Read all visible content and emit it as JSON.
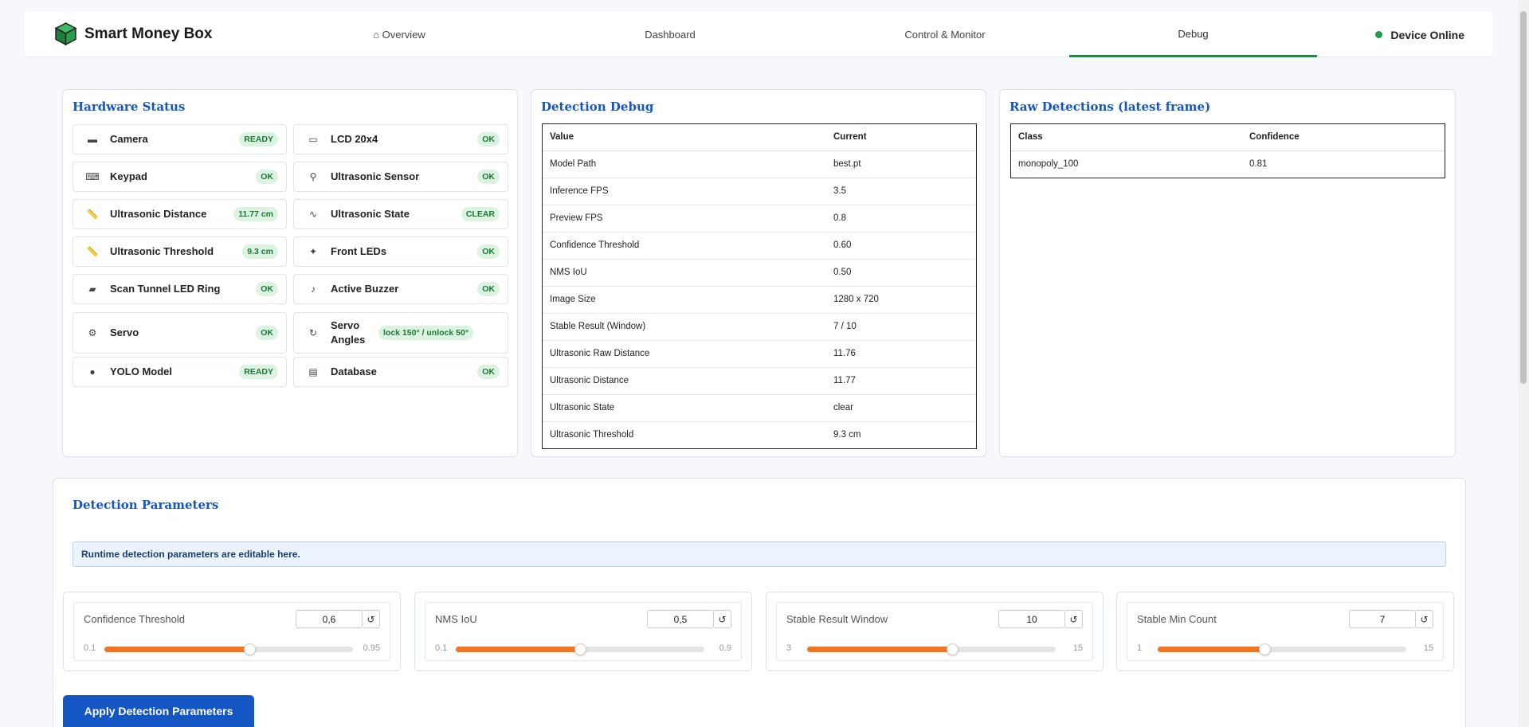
{
  "nav": {
    "brand": "Smart Money Box",
    "links": [
      {
        "label": "⌂ Overview"
      },
      {
        "label": "Dashboard"
      },
      {
        "label": "Control & Monitor"
      },
      {
        "label": "Debug",
        "active": true
      }
    ],
    "status": "Device Online",
    "status_color": "#1e9e4a"
  },
  "hardware": {
    "title": "Hardware Status",
    "items": [
      {
        "icon": "camera-icon",
        "glyph": "▬",
        "label": "Camera",
        "badge": "READY"
      },
      {
        "icon": "lcd-icon",
        "glyph": "▭",
        "label": "LCD 20x4",
        "badge": "OK"
      },
      {
        "icon": "keypad-icon",
        "glyph": "⌨",
        "label": "Keypad",
        "badge": "OK"
      },
      {
        "icon": "satellite-icon",
        "glyph": "⚲",
        "label": "Ultrasonic Sensor",
        "badge": "OK"
      },
      {
        "icon": "ruler-icon",
        "glyph": "📏",
        "label": "Ultrasonic Distance",
        "badge": "11.77 cm"
      },
      {
        "icon": "wave-icon",
        "glyph": "∿",
        "label": "Ultrasonic State",
        "badge": "CLEAR"
      },
      {
        "icon": "ruler-icon",
        "glyph": "📏",
        "label": "Ultrasonic Threshold",
        "badge": "9.3 cm"
      },
      {
        "icon": "sparkle-icon",
        "glyph": "✦",
        "label": "Front LEDs",
        "badge": "OK"
      },
      {
        "icon": "flashlight-icon",
        "glyph": "▰",
        "label": "Scan Tunnel LED Ring",
        "badge": "OK"
      },
      {
        "icon": "music-note-icon",
        "glyph": "♪",
        "label": "Active Buzzer",
        "badge": "OK"
      },
      {
        "icon": "gear-icon",
        "glyph": "⚙",
        "label": "Servo",
        "badge": "OK"
      },
      {
        "icon": "rotate-icon",
        "glyph": "↻",
        "label": "Servo Angles",
        "badge": "lock 150° / unlock 50°"
      },
      {
        "icon": "brain-icon",
        "glyph": "●",
        "label": "YOLO Model",
        "badge": "READY"
      },
      {
        "icon": "database-icon",
        "glyph": "▤",
        "label": "Database",
        "badge": "OK"
      }
    ]
  },
  "detection_debug": {
    "title": "Detection Debug",
    "headers": [
      "Value",
      "Current"
    ],
    "rows": [
      [
        "Model Path",
        "best.pt"
      ],
      [
        "Inference FPS",
        "3.5"
      ],
      [
        "Preview FPS",
        "0.8"
      ],
      [
        "Confidence Threshold",
        "0.60"
      ],
      [
        "NMS IoU",
        "0.50"
      ],
      [
        "Image Size",
        "1280 x 720"
      ],
      [
        "Stable Result (Window)",
        "7 / 10"
      ],
      [
        "Ultrasonic Raw Distance",
        "11.76"
      ],
      [
        "Ultrasonic Distance",
        "11.77"
      ],
      [
        "Ultrasonic State",
        "clear"
      ],
      [
        "Ultrasonic Threshold",
        "9.3 cm"
      ]
    ]
  },
  "raw_detections": {
    "title": "Raw Detections (latest frame)",
    "headers": [
      "Class",
      "Confidence"
    ],
    "rows": [
      [
        "monopoly_100",
        "0.81"
      ]
    ]
  },
  "params": {
    "title": "Detection Parameters",
    "info": "Runtime detection parameters are editable here.",
    "sliders": [
      {
        "label": "Confidence Threshold",
        "value": "0,6",
        "min": "0.1",
        "max": "0.95",
        "fraction": 0.584
      },
      {
        "label": "NMS IoU",
        "value": "0,5",
        "min": "0.1",
        "max": "0.9",
        "fraction": 0.5
      },
      {
        "label": "Stable Result Window",
        "value": "10",
        "min": "3",
        "max": "15",
        "fraction": 0.583
      },
      {
        "label": "Stable Min Count",
        "value": "7",
        "min": "1",
        "max": "15",
        "fraction": 0.429
      }
    ],
    "reset_glyph": "↺",
    "apply_label": "Apply Detection Parameters",
    "slider_color": "#f47521"
  }
}
